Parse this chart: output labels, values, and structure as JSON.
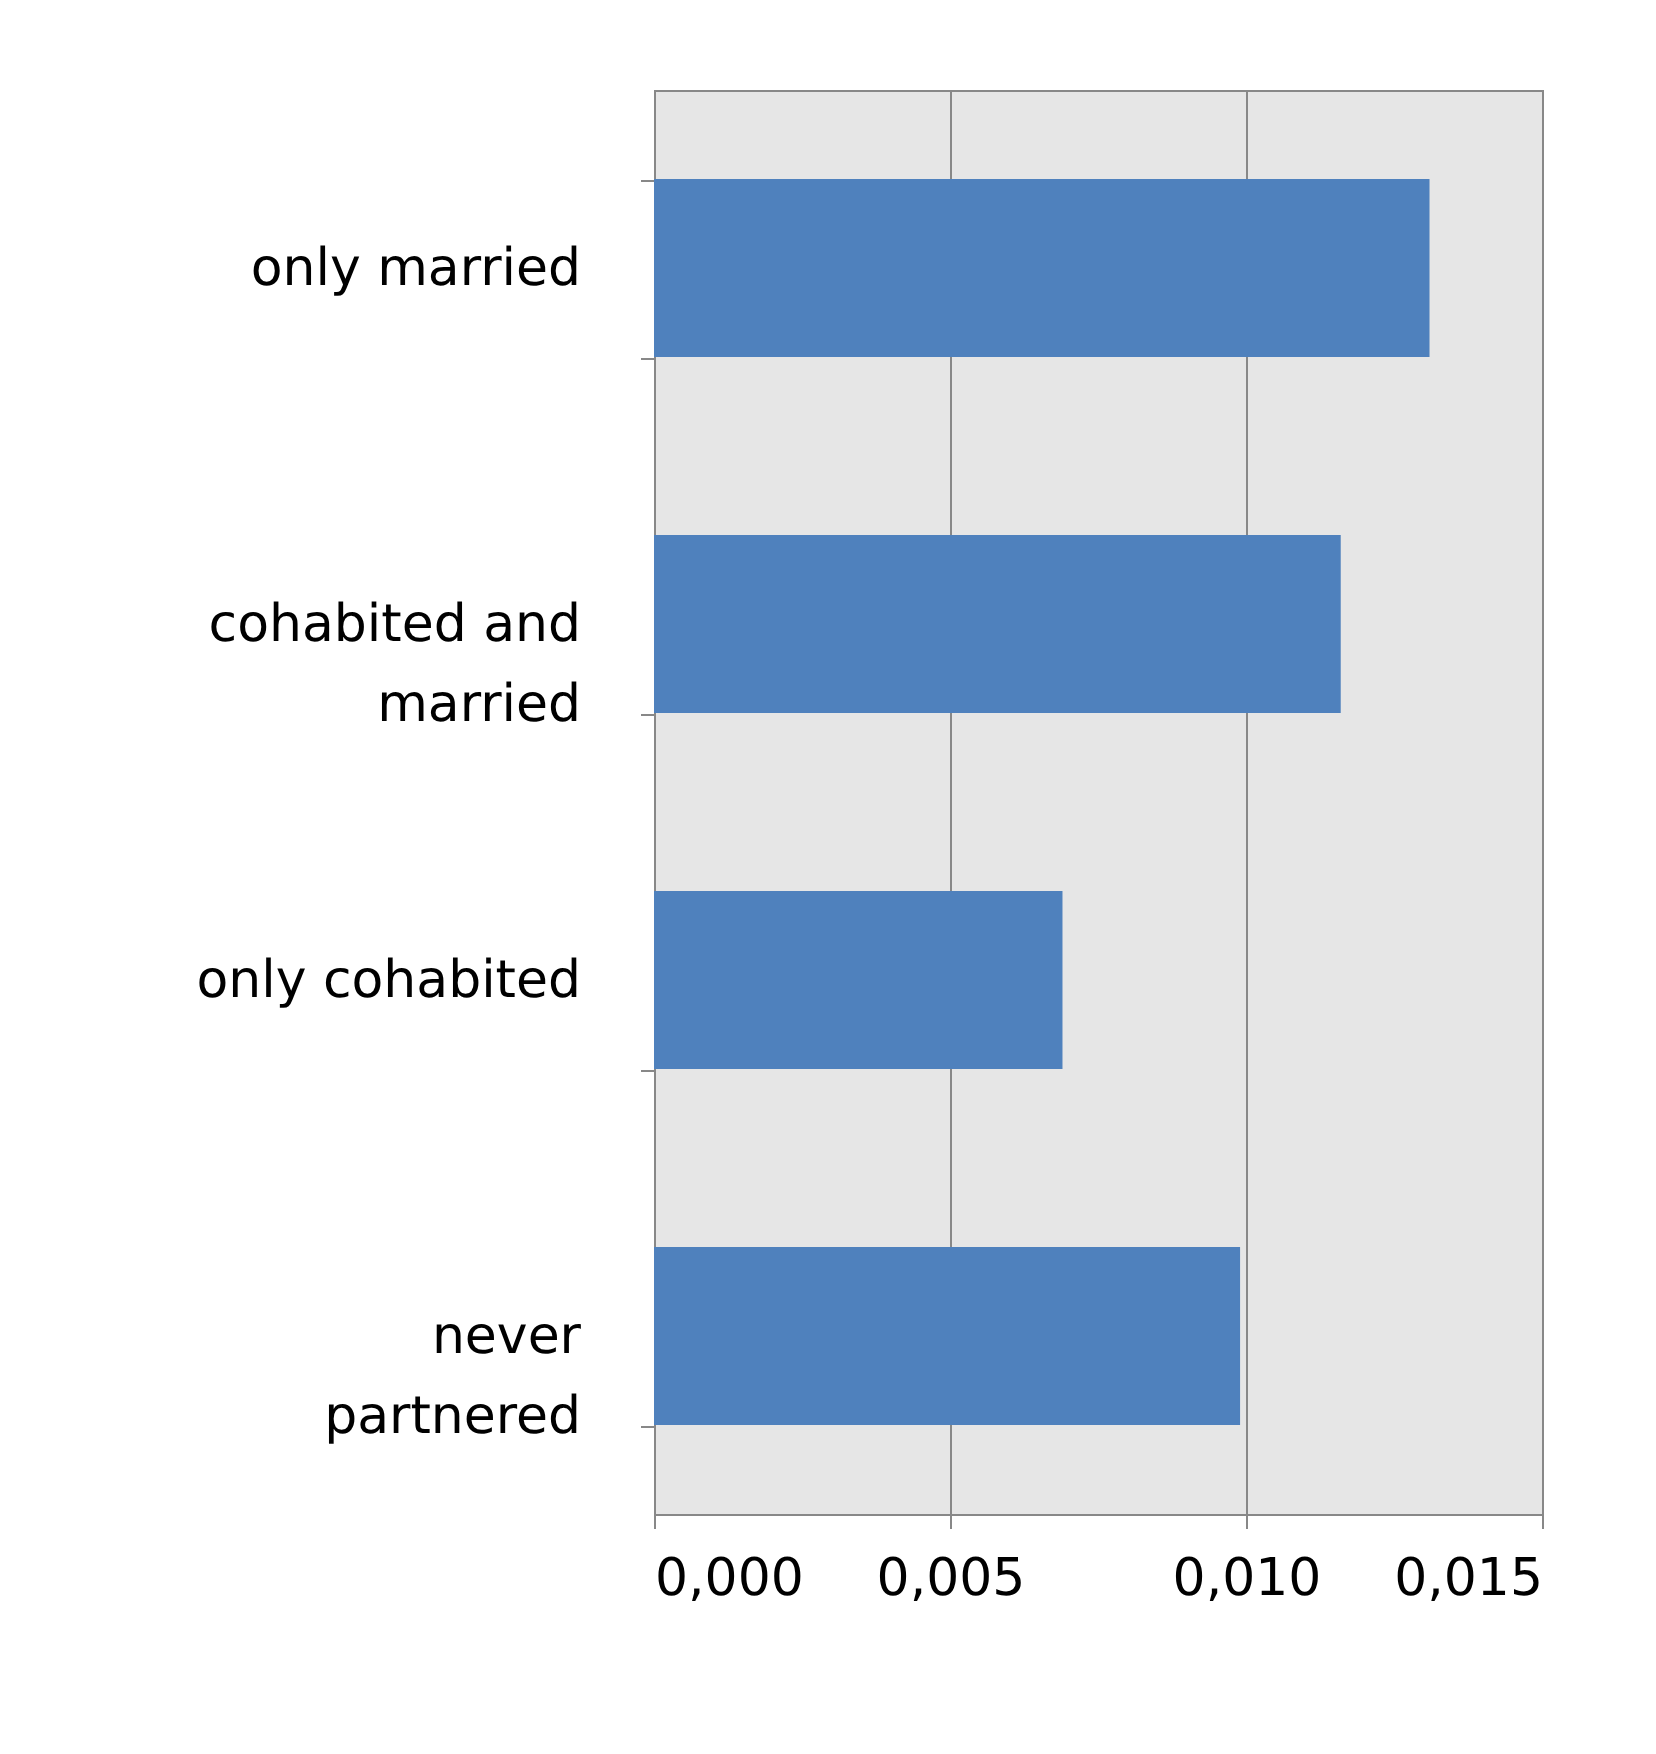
{
  "chart_data": {
    "type": "bar",
    "orientation": "horizontal",
    "categories": [
      "only married",
      "cohabited and married",
      "only cohabited",
      "never partnered"
    ],
    "values": [
      0.0131,
      0.0116,
      0.0069,
      0.0099
    ],
    "color": "#4f81bd",
    "xlim": [
      0,
      0.015
    ],
    "xticks": [
      {
        "value": 0,
        "label": "0,000"
      },
      {
        "value": 0.005,
        "label": "0,005"
      },
      {
        "value": 0.01,
        "label": "0,010"
      },
      {
        "value": 0.015,
        "label": "0,015"
      }
    ],
    "grid": "x"
  }
}
